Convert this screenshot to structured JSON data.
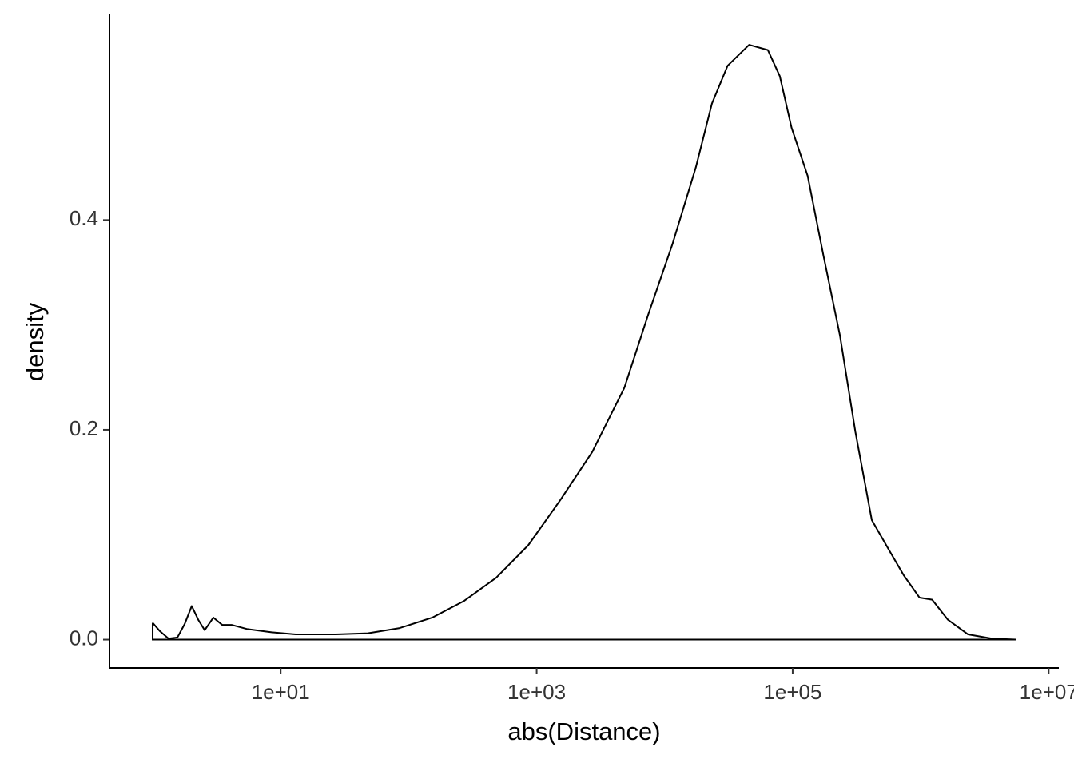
{
  "chart_data": {
    "type": "line",
    "x_label": "abs(Distance)",
    "y_label": "density",
    "xscale": "log",
    "x": [
      1,
      1.14,
      1.33,
      1.56,
      1.78,
      2.02,
      2.27,
      2.55,
      2.98,
      3.5,
      4.16,
      5.5,
      8.5,
      13.1,
      27,
      48,
      85,
      153,
      272,
      483,
      860,
      1530,
      2720,
      4840,
      7400,
      11500,
      17500,
      23400,
      31000,
      45700,
      64000,
      79400,
      98000,
      131000,
      174000,
      234000,
      309000,
      415000,
      550000,
      740000,
      980000,
      1230000,
      1630000,
      2340000,
      3600000,
      5600000
    ],
    "values": [
      0.016,
      0.008,
      0.001,
      0.002,
      0.015,
      0.032,
      0.019,
      0.009,
      0.021,
      0.014,
      0.014,
      0.01,
      0.007,
      0.005,
      0.005,
      0.006,
      0.011,
      0.021,
      0.037,
      0.059,
      0.09,
      0.133,
      0.179,
      0.24,
      0.309,
      0.377,
      0.45,
      0.511,
      0.547,
      0.567,
      0.562,
      0.537,
      0.488,
      0.442,
      0.366,
      0.29,
      0.198,
      0.114,
      0.088,
      0.061,
      0.04,
      0.038,
      0.019,
      0.005,
      0.001,
      0.0
    ],
    "color": "#000000",
    "xlim": [
      0.46,
      12000000
    ],
    "xticks": [
      {
        "value": 10,
        "label": "1e+01"
      },
      {
        "value": 1000,
        "label": "1e+03"
      },
      {
        "value": 100000,
        "label": "1e+05"
      },
      {
        "value": 10000000,
        "label": "1e+07"
      }
    ],
    "ylim": [
      -0.027,
      0.596
    ],
    "yticks": [
      {
        "value": 0,
        "label": "0.0"
      },
      0.2,
      0.4
    ],
    "grid": false
  }
}
